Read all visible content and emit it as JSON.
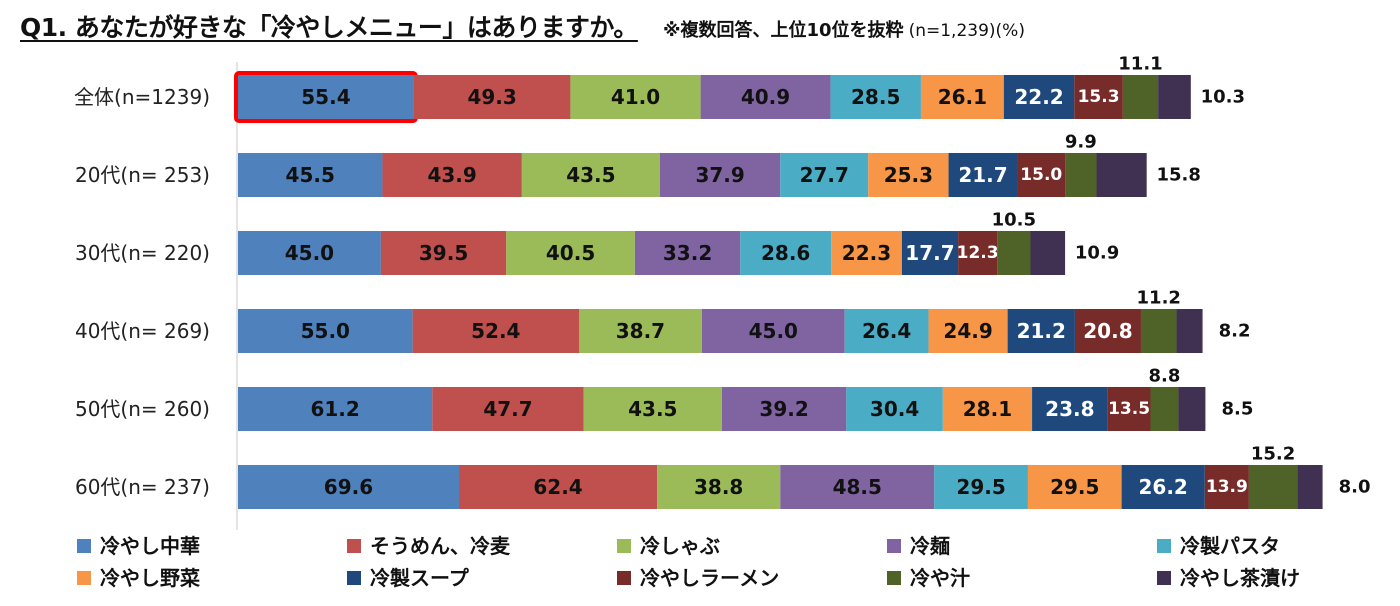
{
  "title": "Q1. あなたが好きな「冷やしメニュー」はありますか。",
  "note": "※複数回答、上位10位を抜粋",
  "sample": "(n=1,239)(%)",
  "chart_data": {
    "type": "bar",
    "orientation": "horizontal",
    "stacked": true,
    "title": "Q1. あなたが好きな「冷やしメニュー」はありますか。",
    "categories": [
      "全体(n=1239)",
      "20代(n= 253)",
      "30代(n= 220)",
      "40代(n= 269)",
      "50代(n= 260)",
      "60代(n= 237)"
    ],
    "series": [
      {
        "name": "冷やし中華",
        "color": "#4f81bd",
        "values": [
          55.4,
          45.5,
          45.0,
          55.0,
          61.2,
          69.6
        ]
      },
      {
        "name": "そうめん、冷麦",
        "color": "#c0504d",
        "values": [
          49.3,
          43.9,
          39.5,
          52.4,
          47.7,
          62.4
        ]
      },
      {
        "name": "冷しゃぶ",
        "color": "#9bbb59",
        "values": [
          41.0,
          43.5,
          40.5,
          38.7,
          43.5,
          38.8
        ]
      },
      {
        "name": "冷麺",
        "color": "#8064a2",
        "values": [
          40.9,
          37.9,
          33.2,
          45.0,
          39.2,
          48.5
        ]
      },
      {
        "name": "冷製パスタ",
        "color": "#4bacc6",
        "values": [
          28.5,
          27.7,
          28.6,
          26.4,
          30.4,
          29.5
        ]
      },
      {
        "name": "冷やし野菜",
        "color": "#f79646",
        "values": [
          26.1,
          25.3,
          22.3,
          24.9,
          28.1,
          29.5
        ]
      },
      {
        "name": "冷製スープ",
        "color": "#1f497d",
        "values": [
          22.2,
          21.7,
          17.7,
          21.2,
          23.8,
          26.2
        ]
      },
      {
        "name": "冷やしラーメン",
        "color": "#772c2a",
        "values": [
          15.3,
          15.0,
          12.3,
          20.8,
          13.5,
          13.9
        ]
      },
      {
        "name": "冷や汁",
        "color": "#4f6228",
        "values": [
          11.1,
          9.9,
          10.5,
          11.2,
          8.8,
          15.2
        ]
      },
      {
        "name": "冷やし茶漬け",
        "color": "#403152",
        "values": [
          10.3,
          15.8,
          10.9,
          8.2,
          8.5,
          8.0
        ]
      }
    ],
    "highlight": {
      "category": "全体(n=1239)",
      "series": "冷やし中華",
      "color": "#ff0000"
    },
    "legend": "bottom",
    "grid": false
  }
}
